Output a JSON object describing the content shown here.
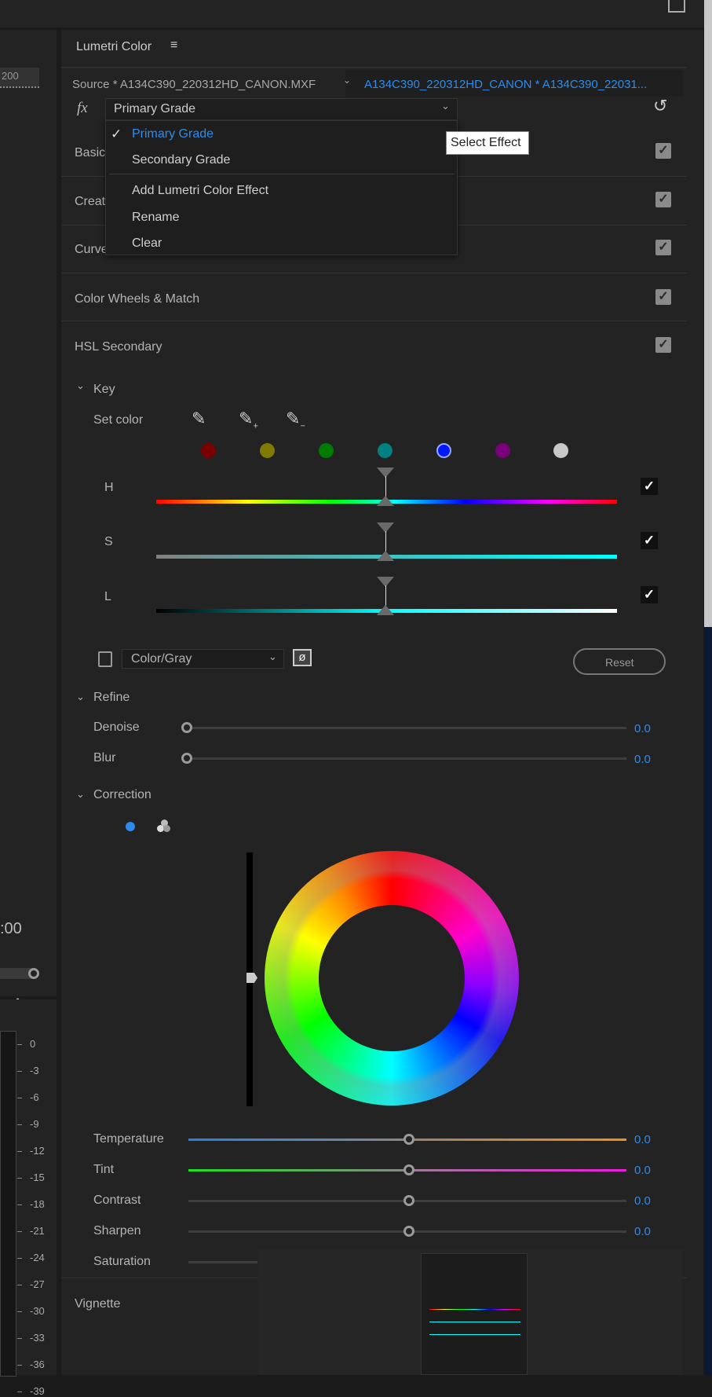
{
  "panel": {
    "title": "Lumetri Color",
    "menu_icon": "hamburger-icon"
  },
  "source": {
    "label": "Source * A134C390_220312HD_CANON.MXF",
    "sequence": "A134C390_220312HD_CANON * A134C390_22031..."
  },
  "effect": {
    "fx_label": "fx",
    "selected": "Primary Grade",
    "tooltip": "Select Effect"
  },
  "menu": {
    "items": [
      "Primary Grade",
      "Secondary Grade",
      "Add Lumetri Color Effect",
      "Rename",
      "Clear"
    ],
    "checked": "Primary Grade"
  },
  "sections": [
    "Basic Correction",
    "Creative",
    "Curves",
    "Color Wheels & Match",
    "HSL Secondary"
  ],
  "sections_visible": [
    "Basic",
    "Creat",
    "Curve",
    "Color Wheels & Match",
    "HSL Secondary"
  ],
  "key": {
    "label": "Key",
    "set_color": "Set color",
    "swatches": [
      "#7a0000",
      "#7f7a00",
      "#007a00",
      "#008080",
      "#0018ff",
      "#7a007a",
      "#c8c8c8"
    ],
    "selected_swatch": 4,
    "h": "H",
    "s": "S",
    "l": "L"
  },
  "mask": {
    "mode": "Color/Gray",
    "reset": "Reset"
  },
  "refine": {
    "label": "Refine",
    "denoise": "Denoise",
    "denoise_value": "0.0",
    "blur": "Blur",
    "blur_value": "0.0"
  },
  "correction": {
    "label": "Correction",
    "sliders": [
      {
        "label": "Temperature",
        "value": "0.0"
      },
      {
        "label": "Tint",
        "value": "0.0"
      },
      {
        "label": "Contrast",
        "value": "0.0"
      },
      {
        "label": "Sharpen",
        "value": "0.0"
      },
      {
        "label": "Saturation"
      }
    ]
  },
  "vignette": {
    "label": "Vignette"
  },
  "left": {
    "ruler": "200",
    "timecode": ":00",
    "add": "+",
    "meter_ticks": [
      "0",
      "-3",
      "-6",
      "-9",
      "-12",
      "-15",
      "-18",
      "-21",
      "-24",
      "-27",
      "-30",
      "-33",
      "-36",
      "-39"
    ]
  },
  "colors": {
    "accent": "#2d8ceb",
    "bg": "#232323"
  }
}
